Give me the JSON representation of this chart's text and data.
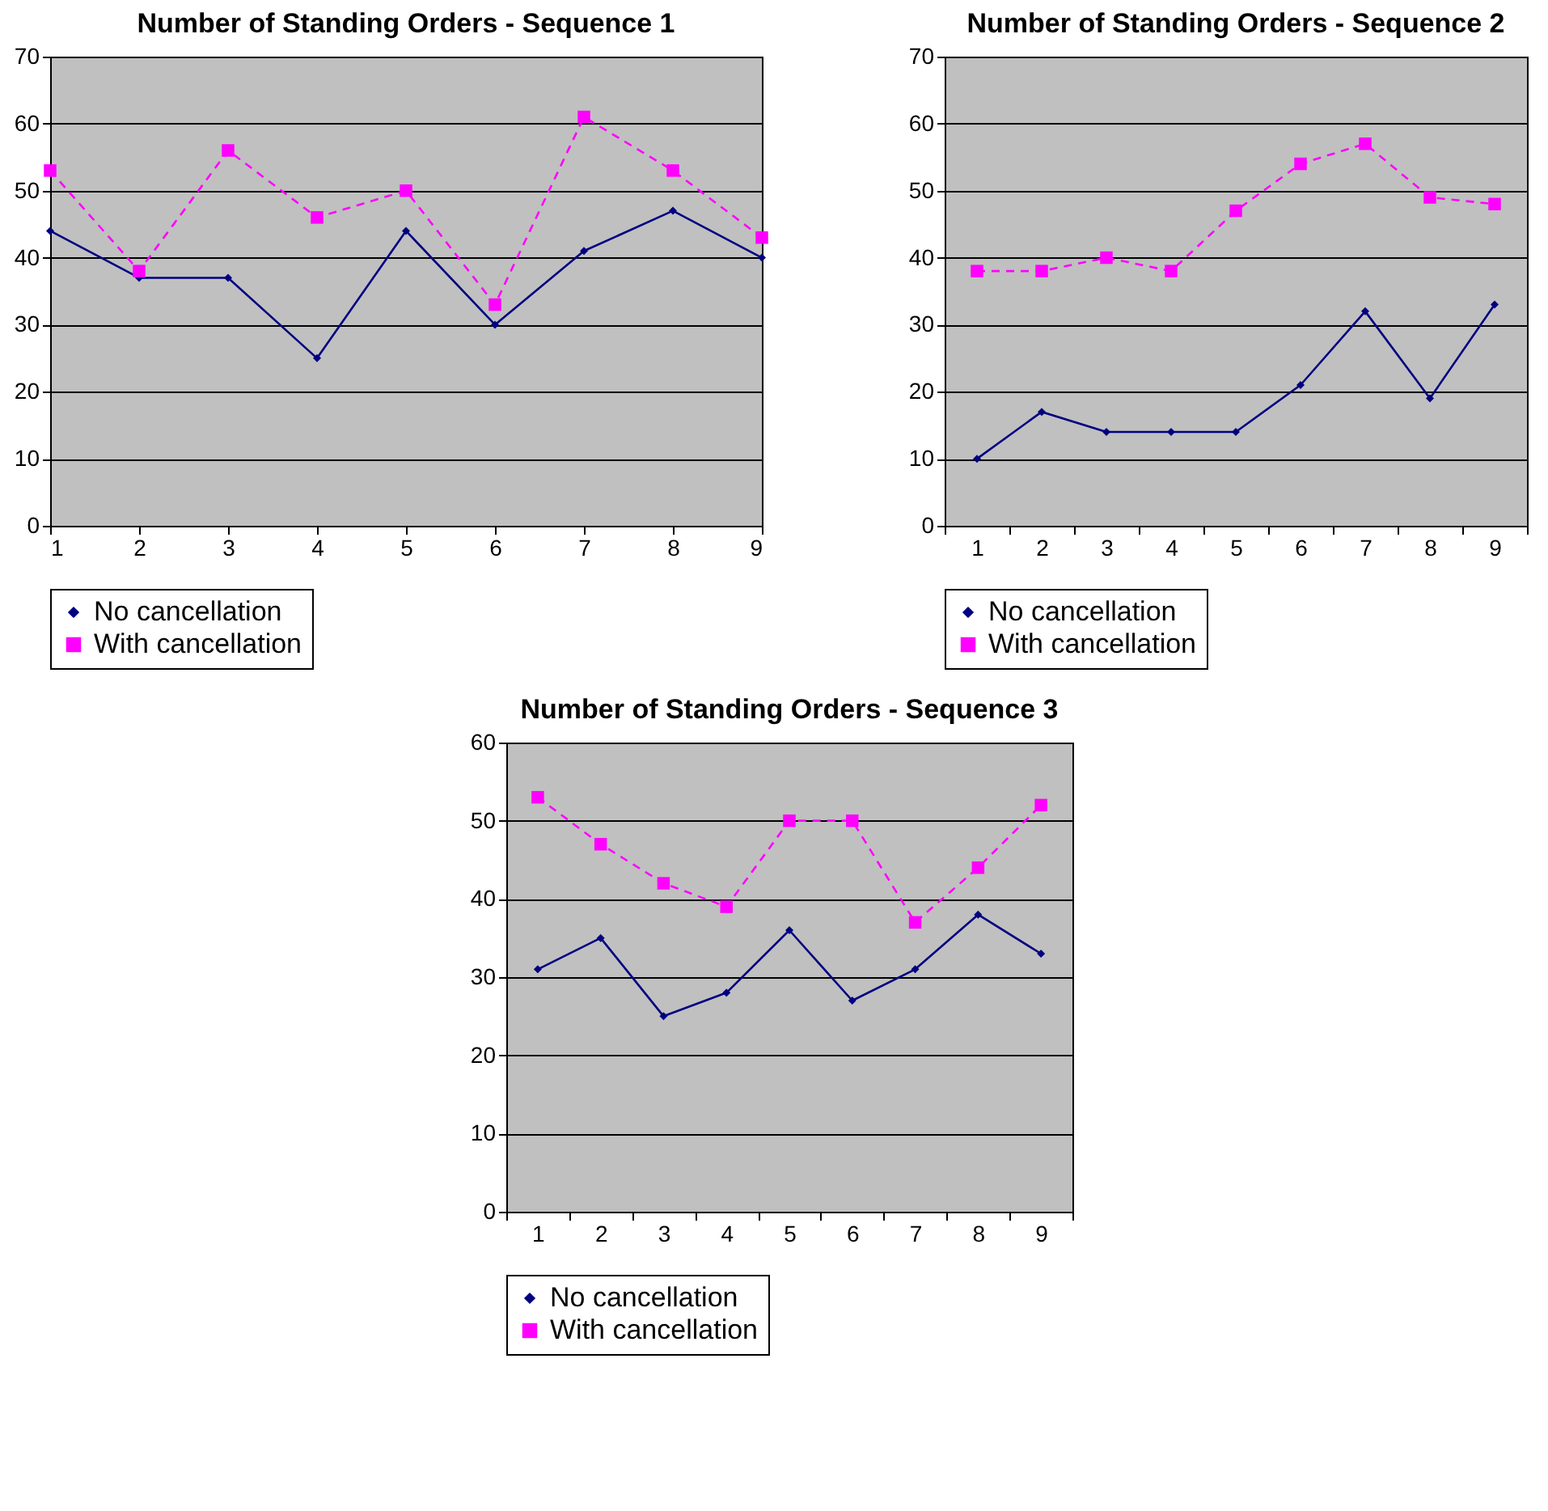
{
  "chart_data": [
    {
      "type": "line",
      "title": "Number of Standing Orders - Sequence 1",
      "x": [
        1,
        2,
        3,
        4,
        5,
        6,
        7,
        8,
        9
      ],
      "xlim": [
        1,
        9
      ],
      "xticks": [
        1,
        2,
        3,
        4,
        5,
        6,
        7,
        8,
        9
      ],
      "ylim": [
        0,
        70
      ],
      "yticks": [
        0,
        10,
        20,
        30,
        40,
        50,
        60,
        70
      ],
      "grid": "y",
      "legend": "bottom",
      "series": [
        {
          "name": "No cancellation",
          "color": "#000080",
          "marker": "diamond",
          "line_style": "solid",
          "values": [
            44,
            37,
            37,
            25,
            44,
            30,
            41,
            47,
            40
          ]
        },
        {
          "name": "With cancellation",
          "color": "#ff00ff",
          "marker": "square",
          "line_style": "dashed",
          "values": [
            53,
            38,
            56,
            46,
            50,
            33,
            61,
            53,
            43
          ]
        }
      ]
    },
    {
      "type": "line",
      "title": "Number of Standing Orders - Sequence 2",
      "categories": [
        "1",
        "2",
        "3",
        "4",
        "5",
        "6",
        "7",
        "8",
        "9"
      ],
      "ylim": [
        0,
        70
      ],
      "yticks": [
        0,
        10,
        20,
        30,
        40,
        50,
        60,
        70
      ],
      "grid": "y",
      "legend": "bottom",
      "series": [
        {
          "name": "No cancellation",
          "color": "#000080",
          "marker": "diamond",
          "line_style": "solid",
          "values": [
            10,
            17,
            14,
            14,
            14,
            21,
            32,
            19,
            33
          ]
        },
        {
          "name": "With cancellation",
          "color": "#ff00ff",
          "marker": "square",
          "line_style": "dashed",
          "values": [
            38,
            38,
            40,
            38,
            47,
            54,
            57,
            49,
            48
          ]
        }
      ]
    },
    {
      "type": "line",
      "title": "Number of Standing Orders - Sequence 3",
      "categories": [
        "1",
        "2",
        "3",
        "4",
        "5",
        "6",
        "7",
        "8",
        "9"
      ],
      "ylim": [
        0,
        60
      ],
      "yticks": [
        0,
        10,
        20,
        30,
        40,
        50,
        60
      ],
      "grid": "y",
      "legend": "bottom",
      "series": [
        {
          "name": "No cancellation",
          "color": "#000080",
          "marker": "diamond",
          "line_style": "solid",
          "values": [
            31,
            35,
            25,
            28,
            36,
            27,
            31,
            38,
            33
          ]
        },
        {
          "name": "With cancellation",
          "color": "#ff00ff",
          "marker": "square",
          "line_style": "dashed",
          "values": [
            53,
            47,
            42,
            39,
            50,
            50,
            37,
            44,
            52
          ]
        }
      ]
    }
  ]
}
